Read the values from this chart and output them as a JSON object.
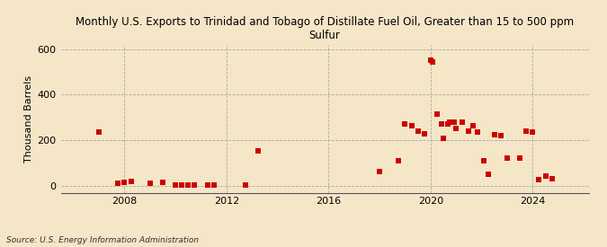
{
  "title": "Monthly U.S. Exports to Trinidad and Tobago of Distillate Fuel Oil, Greater than 15 to 500 ppm\nSulfur",
  "ylabel": "Thousand Barrels",
  "source": "Source: U.S. Energy Information Administration",
  "background_color": "#f5e6c8",
  "plot_background_color": "#f5e6c8",
  "point_color": "#cc0000",
  "marker": "s",
  "marker_size": 16,
  "xlim": [
    2005.5,
    2026.2
  ],
  "ylim": [
    -30,
    620
  ],
  "yticks": [
    0,
    200,
    400,
    600
  ],
  "xticks": [
    2008,
    2012,
    2016,
    2020,
    2024
  ],
  "data_x": [
    2007.0,
    2007.75,
    2008.0,
    2008.25,
    2009.0,
    2009.5,
    2010.0,
    2010.25,
    2010.5,
    2010.75,
    2011.25,
    2011.5,
    2012.75,
    2013.25,
    2018.0,
    2018.75,
    2019.0,
    2019.25,
    2019.5,
    2019.75,
    2020.0,
    2020.08,
    2020.25,
    2020.42,
    2020.5,
    2020.67,
    2020.75,
    2020.92,
    2021.0,
    2021.25,
    2021.5,
    2021.67,
    2021.83,
    2022.08,
    2022.25,
    2022.5,
    2022.75,
    2023.0,
    2023.5,
    2023.75,
    2024.0,
    2024.25,
    2024.5,
    2024.75
  ],
  "data_y": [
    237,
    10,
    15,
    20,
    10,
    15,
    5,
    5,
    5,
    5,
    5,
    5,
    5,
    155,
    62,
    110,
    270,
    265,
    240,
    230,
    550,
    545,
    315,
    270,
    210,
    270,
    280,
    280,
    250,
    280,
    240,
    265,
    235,
    110,
    50,
    225,
    220,
    120,
    120,
    240,
    235,
    28,
    42,
    30
  ]
}
